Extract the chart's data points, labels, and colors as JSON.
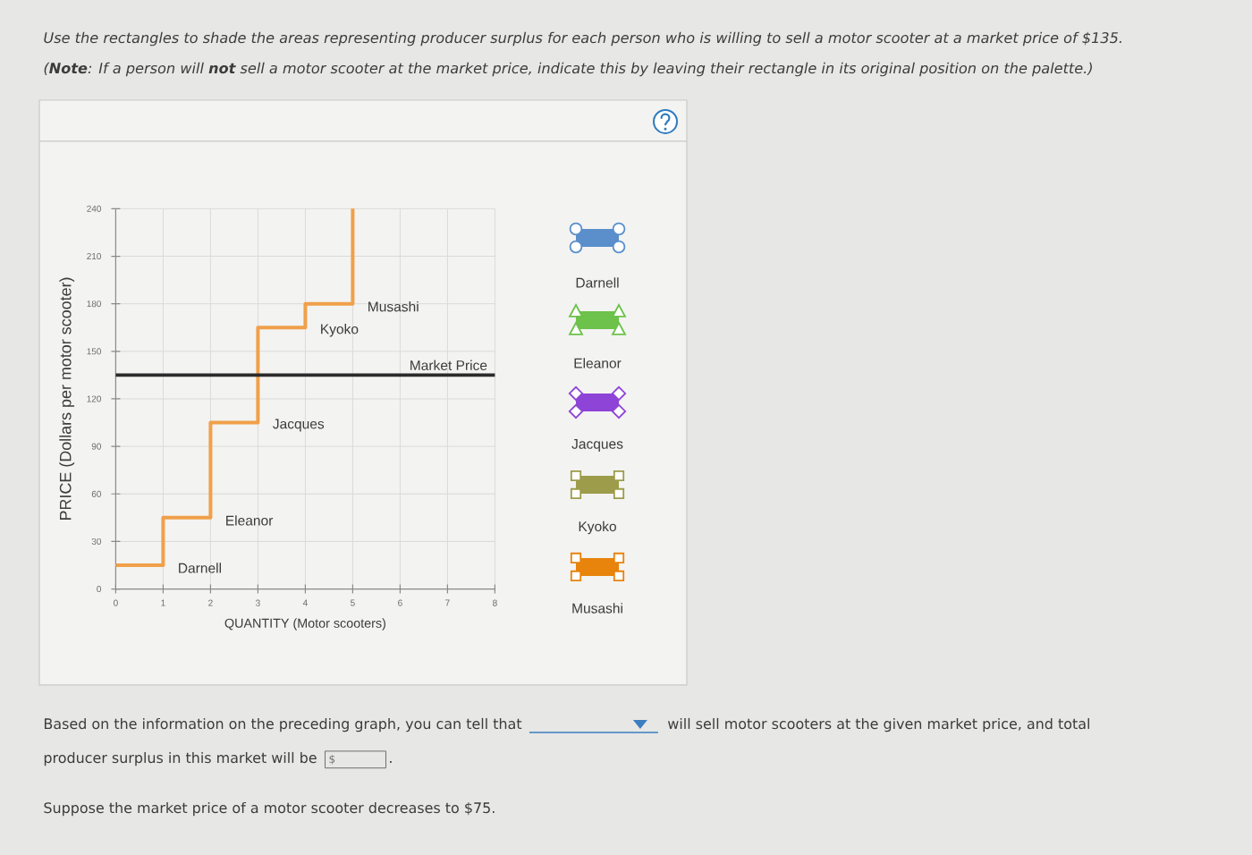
{
  "chart_data": {
    "type": "step",
    "title": "Use the rectangles to shade the areas representing producer surplus for each person who is willing to sell a motor scooter at a market price of $135.",
    "subtitle": "(**Note**: If a person will **not** sell a motor scooter at the market price, indicate this by leaving their rectangle in its original position on the palette.)",
    "xlabel": "QUANTITY (Motor scooters)",
    "ylabel": "PRICE (Dollars per motor scooter)",
    "x": [
      0,
      1,
      2,
      3,
      4,
      5
    ],
    "values": [
      15,
      45,
      105,
      165,
      180,
      240
    ],
    "color": "#f0a04a",
    "xlim": [
      0,
      8
    ],
    "ylim": [
      0,
      240
    ],
    "xticks": [
      0,
      1,
      2,
      3,
      4,
      5,
      6,
      7,
      8
    ],
    "yticks": [
      0,
      30,
      60,
      90,
      120,
      150,
      180,
      210,
      240
    ],
    "grid": true,
    "ref_lines": [
      {
        "axis": "y",
        "value": 135,
        "label": "Market Price",
        "color": "#2b2b2b"
      }
    ],
    "annotations": [
      {
        "text": "Darnell",
        "x": 1,
        "y": 15
      },
      {
        "text": "Eleanor",
        "x": 2,
        "y": 45
      },
      {
        "text": "Jacques",
        "x": 3,
        "y": 105
      },
      {
        "text": "Kyoko",
        "x": 4,
        "y": 165
      },
      {
        "text": "Musashi",
        "x": 5,
        "y": 180
      },
      "Darnell",
      "Eleanor",
      "Jacques",
      "Kyoko",
      "Musashi",
      "Based on the information on the preceding graph, you can tell that",
      "will sell motor scooters at the given market price, and total",
      "producer surplus in this market will be",
      "$",
      ".",
      "Suppose the market price of a motor scooter decreases to $75."
    ]
  }
}
